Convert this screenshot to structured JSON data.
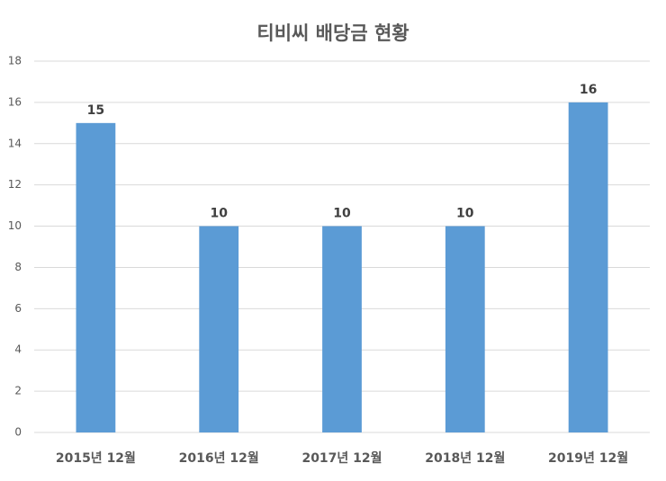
{
  "chart_data": {
    "type": "bar",
    "title": "티비씨 배당금 현황",
    "categories": [
      "2015년 12월",
      "2016년 12월",
      "2017년 12월",
      "2018년 12월",
      "2019년 12월"
    ],
    "values": [
      15,
      10,
      10,
      10,
      16
    ],
    "color": "#5b9bd5",
    "ylim": [
      0,
      18
    ],
    "yticks": [
      0,
      2,
      4,
      6,
      8,
      10,
      12,
      14,
      16,
      18
    ],
    "grid": true
  }
}
